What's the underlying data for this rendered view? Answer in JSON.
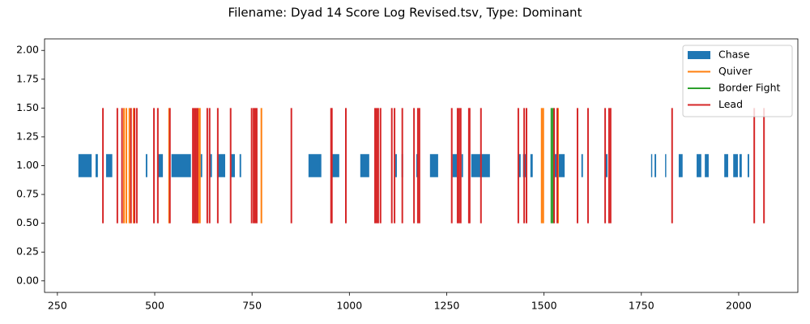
{
  "chart_data": {
    "type": "event",
    "title": "Filename: Dyad 14 Score Log Revised.tsv, Type: Dominant",
    "xlim": [
      217,
      2152
    ],
    "ylim": [
      -0.1,
      2.1
    ],
    "xticks": [
      250,
      500,
      750,
      1000,
      1250,
      1500,
      1750,
      2000
    ],
    "yticks": [
      {
        "value": 0,
        "label": "0.00"
      },
      {
        "value": 0.25,
        "label": "0.25"
      },
      {
        "value": 0.5,
        "label": "0.50"
      },
      {
        "value": 0.75,
        "label": "0.75"
      },
      {
        "value": 1,
        "label": "1.00"
      },
      {
        "value": 1.25,
        "label": "1.25"
      },
      {
        "value": 1.5,
        "label": "1.50"
      },
      {
        "value": 1.75,
        "label": "1.75"
      },
      {
        "value": 2,
        "label": "2.00"
      }
    ],
    "legend": "upper right",
    "series": [
      {
        "name": "Chase",
        "color": "#1f77b4",
        "y": [
          0.9,
          0.2
        ],
        "intervals": [
          [
            304,
            34
          ],
          [
            348,
            6
          ],
          [
            375,
            16
          ],
          [
            477,
            4
          ],
          [
            508,
            13
          ],
          [
            543,
            50
          ],
          [
            618,
            4
          ],
          [
            641,
            6
          ],
          [
            660,
            21
          ],
          [
            695,
            11
          ],
          [
            718,
            4
          ],
          [
            895,
            33
          ],
          [
            955,
            19
          ],
          [
            1028,
            23
          ],
          [
            1118,
            4
          ],
          [
            1134,
            4
          ],
          [
            1172,
            6
          ],
          [
            1207,
            21
          ],
          [
            1265,
            13
          ],
          [
            1288,
            4
          ],
          [
            1313,
            48
          ],
          [
            1434,
            6
          ],
          [
            1446,
            7
          ],
          [
            1465,
            6
          ],
          [
            1526,
            27
          ],
          [
            1596,
            4
          ],
          [
            1657,
            6
          ],
          [
            1775,
            3
          ],
          [
            1784,
            4
          ],
          [
            1811,
            3
          ],
          [
            1846,
            10
          ],
          [
            1892,
            12
          ],
          [
            1913,
            10
          ],
          [
            1963,
            10
          ],
          [
            1986,
            12
          ],
          [
            2002,
            6
          ],
          [
            2023,
            4
          ]
        ]
      },
      {
        "name": "Quiver",
        "color": "#ff7f0e",
        "ymin": 0.5,
        "ymax": 1.5,
        "x": [
          421,
          427,
          435,
          446,
          537,
          612,
          616,
          774,
          1494,
          1498,
          1536
        ]
      },
      {
        "name": "Border Fight",
        "color": "#2ca02c",
        "ymin": 0.5,
        "ymax": 1.5,
        "x": [
          1519,
          1523
        ]
      },
      {
        "name": "Lead",
        "color": "#d62728",
        "ymin": 0.5,
        "ymax": 1.5,
        "x": [
          367,
          404,
          416,
          439,
          448,
          454,
          498,
          508,
          539,
          598,
          602,
          606,
          610,
          635,
          641,
          662,
          695,
          749,
          754,
          758,
          762,
          851,
          953,
          955,
          991,
          1066,
          1070,
          1074,
          1080,
          1109,
          1116,
          1136,
          1166,
          1176,
          1180,
          1263,
          1278,
          1282,
          1286,
          1307,
          1309,
          1338,
          1434,
          1449,
          1455,
          1526,
          1534,
          1586,
          1613,
          1657,
          1667,
          1671,
          1829,
          2040,
          2065
        ]
      }
    ]
  }
}
